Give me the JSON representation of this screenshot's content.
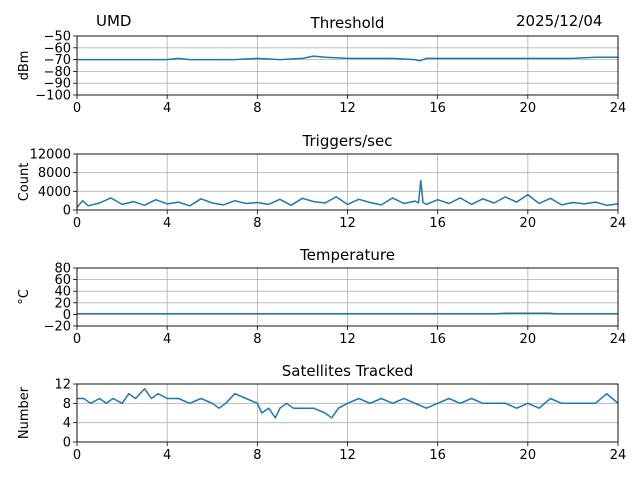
{
  "header": {
    "site": "UMD",
    "date": "2025/12/04"
  },
  "chart_data": [
    {
      "type": "line",
      "title": "Threshold",
      "ylabel": "dBm",
      "xlim": [
        0,
        24
      ],
      "ylim": [
        -100,
        -50
      ],
      "xticks": [
        0,
        4,
        8,
        12,
        16,
        20,
        24
      ],
      "yticks": [
        -50,
        -60,
        -70,
        -80,
        -90,
        -100
      ],
      "grid": true,
      "series": [
        {
          "color": "#1f77b4",
          "x": [
            0,
            1,
            2,
            3,
            4,
            4.5,
            5,
            6,
            7,
            8,
            9,
            10,
            10.5,
            11,
            12,
            13,
            14,
            15,
            15.2,
            15.5,
            16,
            17,
            18,
            19,
            20,
            21,
            22,
            23,
            24
          ],
          "y": [
            -70,
            -70,
            -70,
            -70,
            -70,
            -69,
            -70,
            -70,
            -70,
            -69,
            -70,
            -69,
            -67,
            -68,
            -69,
            -69,
            -69,
            -70,
            -71,
            -69,
            -69,
            -69,
            -69,
            -69,
            -69,
            -69,
            -69,
            -68,
            -68
          ]
        }
      ]
    },
    {
      "type": "line",
      "title": "Triggers/sec",
      "ylabel": "Count",
      "xlim": [
        0,
        24
      ],
      "ylim": [
        0,
        12000
      ],
      "xticks": [
        0,
        4,
        8,
        12,
        16,
        20,
        24
      ],
      "yticks": [
        0,
        4000,
        8000,
        12000
      ],
      "grid": true,
      "series": [
        {
          "color": "#1f77b4",
          "x": [
            0,
            0.25,
            0.5,
            1,
            1.5,
            2,
            2.5,
            3,
            3.5,
            4,
            4.5,
            5,
            5.5,
            6,
            6.5,
            7,
            7.5,
            8,
            8.5,
            9,
            9.5,
            10,
            10.5,
            11,
            11.5,
            12,
            12.5,
            13,
            13.5,
            14,
            14.5,
            15,
            15.15,
            15.25,
            15.35,
            15.5,
            16,
            16.5,
            17,
            17.5,
            18,
            18.5,
            19,
            19.5,
            20,
            20.5,
            21,
            21.5,
            22,
            22.5,
            23,
            23.5,
            24
          ],
          "y": [
            600,
            2000,
            900,
            1500,
            2600,
            1200,
            1800,
            1000,
            2200,
            1300,
            1700,
            900,
            2400,
            1500,
            1100,
            2000,
            1400,
            1600,
            1200,
            2300,
            1000,
            2500,
            1800,
            1500,
            2800,
            1200,
            2300,
            1600,
            1100,
            2600,
            1400,
            1900,
            1500,
            6300,
            1600,
            1200,
            2200,
            1400,
            2600,
            1200,
            2400,
            1500,
            2800,
            1700,
            3300,
            1400,
            2500,
            1100,
            1600,
            1300,
            1700,
            1000,
            1300
          ]
        }
      ]
    },
    {
      "type": "line",
      "title": "Temperature",
      "ylabel": "°C",
      "xlim": [
        0,
        24
      ],
      "ylim": [
        -20,
        80
      ],
      "xticks": [
        0,
        4,
        8,
        12,
        16,
        20,
        24
      ],
      "yticks": [
        -20,
        0,
        20,
        40,
        60,
        80
      ],
      "grid": true,
      "series": [
        {
          "color": "#1f77b4",
          "x": [
            0,
            4,
            8,
            12,
            16,
            18.5,
            19,
            20,
            21,
            21.2,
            22,
            24
          ],
          "y": [
            1,
            1,
            1,
            1,
            1,
            1,
            2,
            2,
            2,
            1,
            1,
            1
          ]
        }
      ]
    },
    {
      "type": "line",
      "title": "Satellites Tracked",
      "ylabel": "Number",
      "xlim": [
        0,
        24
      ],
      "ylim": [
        0,
        12
      ],
      "xticks": [
        0,
        4,
        8,
        12,
        16,
        20,
        24
      ],
      "yticks": [
        0,
        4,
        8,
        12
      ],
      "grid": true,
      "series": [
        {
          "color": "#1f77b4",
          "x": [
            0,
            0.3,
            0.6,
            1,
            1.3,
            1.6,
            2,
            2.3,
            2.6,
            3,
            3.3,
            3.6,
            4,
            4.5,
            5,
            5.5,
            6,
            6.3,
            6.6,
            7,
            7.5,
            8,
            8.2,
            8.5,
            8.8,
            9,
            9.3,
            9.6,
            10,
            10.5,
            11,
            11.3,
            11.6,
            12,
            12.5,
            13,
            13.5,
            14,
            14.5,
            15,
            15.5,
            16,
            16.5,
            17,
            17.5,
            18,
            18.5,
            19,
            19.5,
            20,
            20.5,
            21,
            21.5,
            22,
            22.5,
            23,
            23.5,
            24
          ],
          "y": [
            9,
            9,
            8,
            9,
            8,
            9,
            8,
            10,
            9,
            11,
            9,
            10,
            9,
            9,
            8,
            9,
            8,
            7,
            8,
            10,
            9,
            8,
            6,
            7,
            5,
            7,
            8,
            7,
            7,
            7,
            6,
            5,
            7,
            8,
            9,
            8,
            9,
            8,
            9,
            8,
            7,
            8,
            9,
            8,
            9,
            8,
            8,
            8,
            7,
            8,
            7,
            9,
            8,
            8,
            8,
            8,
            10,
            8
          ]
        }
      ]
    }
  ]
}
